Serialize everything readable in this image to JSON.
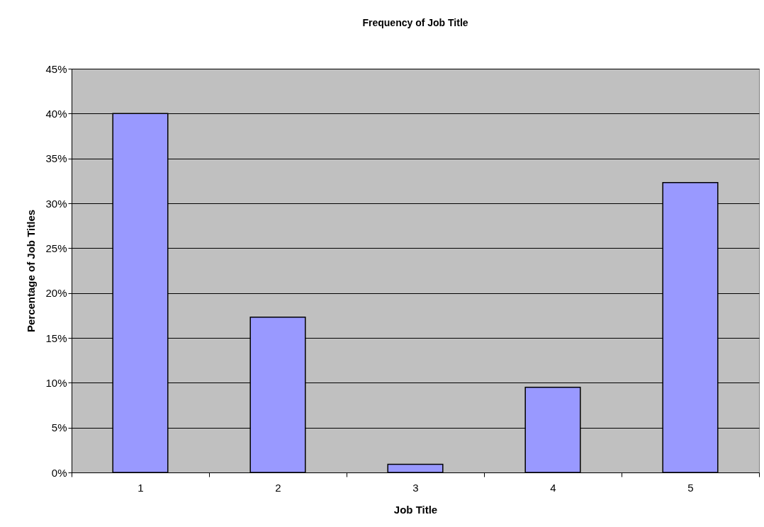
{
  "chart_data": {
    "type": "bar",
    "title": "Frequency of Job Title",
    "xlabel": "Job Title",
    "ylabel": "Percentage of Job Titles",
    "categories": [
      "1",
      "2",
      "3",
      "4",
      "5"
    ],
    "values": [
      40.0,
      17.3,
      0.9,
      9.5,
      32.3
    ],
    "color": "#9999ff",
    "ylim": [
      0,
      45
    ],
    "yticks": [
      {
        "value": 0,
        "label": "0%"
      },
      {
        "value": 5,
        "label": "5%"
      },
      {
        "value": 10,
        "label": "10%"
      },
      {
        "value": 15,
        "label": "15%"
      },
      {
        "value": 20,
        "label": "20%"
      },
      {
        "value": 25,
        "label": "25%"
      },
      {
        "value": 30,
        "label": "30%"
      },
      {
        "value": 35,
        "label": "35%"
      },
      {
        "value": 40,
        "label": "40%"
      },
      {
        "value": 45,
        "label": "45%"
      }
    ],
    "grid": "y"
  }
}
